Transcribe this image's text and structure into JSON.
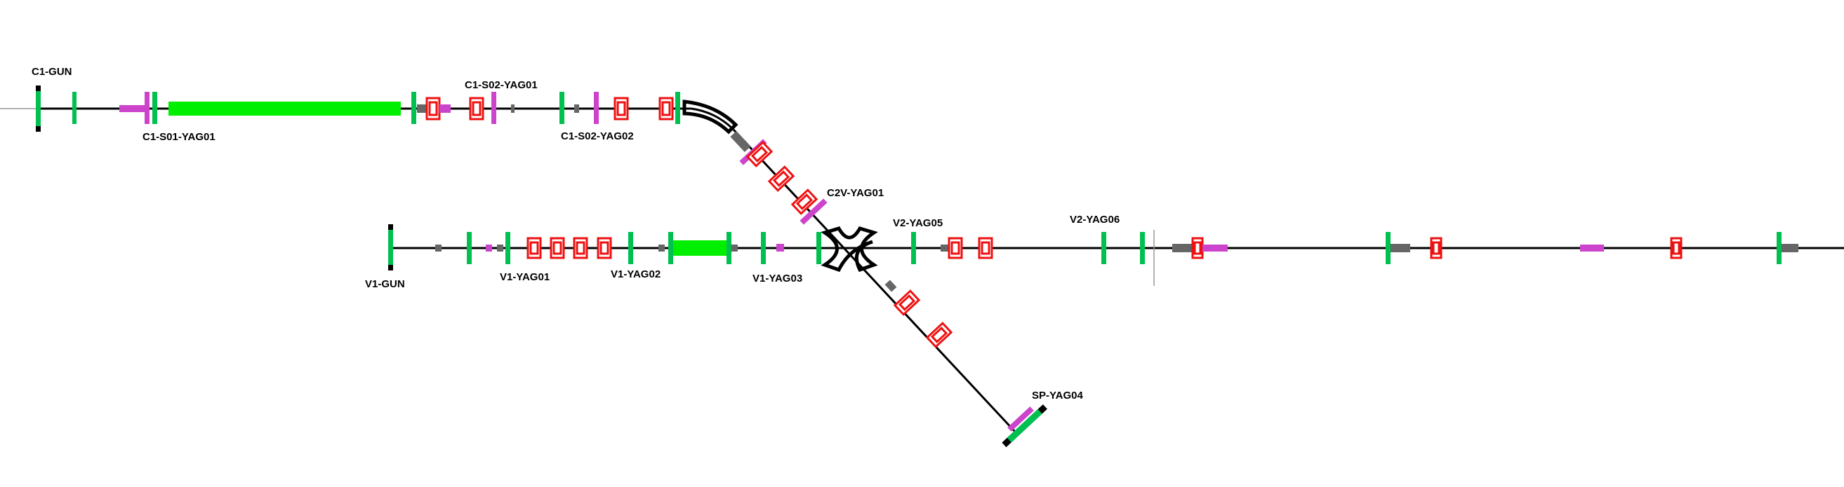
{
  "labels": {
    "c1_gun": "C1-GUN",
    "c1_s01_yag01": "C1-S01-YAG01",
    "c1_s02_yag01": "C1-S02-YAG01",
    "c1_s02_yag02": "C1-S02-YAG02",
    "c2v_yag01": "C2V-YAG01",
    "v1_gun": "V1-GUN",
    "v1_yag01": "V1-YAG01",
    "v1_yag02": "V1-YAG02",
    "v1_yag03": "V1-YAG03",
    "v2_yag05": "V2-YAG05",
    "v2_yag06": "V2-YAG06",
    "sp_yag04": "SP-YAG04"
  },
  "colors": {
    "beamline": "#000000",
    "green_element": "#00c050",
    "bright_green_element": "#00ee00",
    "magenta_element": "#cc44cc",
    "red_element": "#ee1111",
    "gray_element": "#666666",
    "marker_line": "#999999"
  },
  "icons": {
    "green_element": "green-bar-icon",
    "magenta_element": "magenta-screen-icon",
    "red_element": "red-box-icon",
    "gray_element": "gray-block-icon",
    "dipole": "dipole-magnet-icon",
    "gun": "gun-endcap-icon"
  }
}
